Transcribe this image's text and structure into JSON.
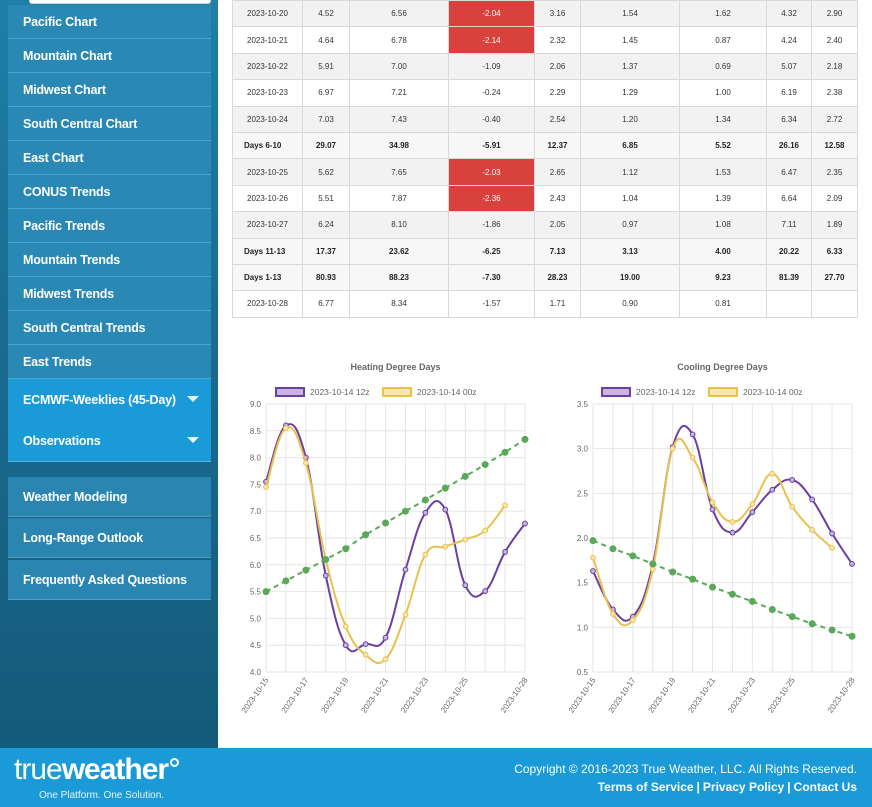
{
  "sidebar": {
    "items": [
      {
        "label": "Pacific Chart"
      },
      {
        "label": "Mountain Chart"
      },
      {
        "label": "Midwest Chart"
      },
      {
        "label": "South Central Chart"
      },
      {
        "label": "East Chart"
      },
      {
        "label": "CONUS Trends"
      },
      {
        "label": "Pacific Trends"
      },
      {
        "label": "Mountain Trends"
      },
      {
        "label": "Midwest Trends"
      },
      {
        "label": "South Central Trends"
      },
      {
        "label": "East Trends"
      }
    ],
    "dropdowns": [
      {
        "label": "ECMWF-Weeklies (45-Day)"
      },
      {
        "label": "Observations"
      }
    ],
    "links": [
      {
        "label": "Weather Modeling"
      },
      {
        "label": "Long-Range Outlook"
      },
      {
        "label": "Frequently Asked Questions"
      }
    ]
  },
  "table": {
    "rows": [
      {
        "cells": [
          "2023-10-20",
          "4.52",
          "6.56",
          "-2.04",
          "3.16",
          "1.54",
          "1.62",
          "4.32",
          "2.90"
        ],
        "neg": true,
        "sum": false
      },
      {
        "cells": [
          "2023-10-21",
          "4.64",
          "6.78",
          "-2.14",
          "2.32",
          "1.45",
          "0.87",
          "4.24",
          "2.40"
        ],
        "neg": true,
        "sum": false
      },
      {
        "cells": [
          "2023-10-22",
          "5.91",
          "7.00",
          "-1.09",
          "2.06",
          "1.37",
          "0.69",
          "5.07",
          "2.18"
        ],
        "neg": false,
        "sum": false
      },
      {
        "cells": [
          "2023-10-23",
          "6.97",
          "7.21",
          "-0.24",
          "2.29",
          "1.29",
          "1.00",
          "6.19",
          "2.38"
        ],
        "neg": false,
        "sum": false
      },
      {
        "cells": [
          "2023-10-24",
          "7.03",
          "7.43",
          "-0.40",
          "2.54",
          "1.20",
          "1.34",
          "6.34",
          "2.72"
        ],
        "neg": false,
        "sum": false
      },
      {
        "cells": [
          "Days 6-10",
          "29.07",
          "34.98",
          "-5.91",
          "12.37",
          "6.85",
          "5.52",
          "26.16",
          "12.58"
        ],
        "neg": false,
        "sum": true
      },
      {
        "cells": [
          "2023-10-25",
          "5.62",
          "7.65",
          "-2.03",
          "2.65",
          "1.12",
          "1.53",
          "6.47",
          "2.35"
        ],
        "neg": true,
        "sum": false
      },
      {
        "cells": [
          "2023-10-26",
          "5.51",
          "7.87",
          "-2.36",
          "2.43",
          "1.04",
          "1.39",
          "6.64",
          "2.09"
        ],
        "neg": true,
        "sum": false
      },
      {
        "cells": [
          "2023-10-27",
          "6.24",
          "8.10",
          "-1.86",
          "2.05",
          "0.97",
          "1.08",
          "7.11",
          "1.89"
        ],
        "neg": false,
        "sum": false
      },
      {
        "cells": [
          "Days 11-13",
          "17.37",
          "23.62",
          "-6.25",
          "7.13",
          "3.13",
          "4.00",
          "20.22",
          "6.33"
        ],
        "neg": false,
        "sum": true
      },
      {
        "cells": [
          "Days 1-13",
          "80.93",
          "88.23",
          "-7.30",
          "28.23",
          "19.00",
          "9.23",
          "81.39",
          "27.70"
        ],
        "neg": false,
        "sum": true
      },
      {
        "cells": [
          "2023-10-28",
          "6.77",
          "8.34",
          "-1.57",
          "1.71",
          "0.90",
          "0.81",
          "",
          ""
        ],
        "neg": false,
        "sum": false
      }
    ]
  },
  "colors": {
    "series_12z": "#6b3fa0",
    "series_00z": "#e8c14e",
    "trend": "#5aa85a",
    "negative_cell": "#d9423c"
  },
  "chart_data": [
    {
      "type": "line",
      "title": "Heating Degree Days",
      "legend_placement": "top",
      "x": [
        "2023-10-15",
        "2023-10-16",
        "2023-10-17",
        "2023-10-18",
        "2023-10-19",
        "2023-10-20",
        "2023-10-21",
        "2023-10-22",
        "2023-10-23",
        "2023-10-24",
        "2023-10-25",
        "2023-10-26",
        "2023-10-27",
        "2023-10-28"
      ],
      "x_tick_labels": [
        "2023-10-15",
        "2023-10-17",
        "2023-10-19",
        "2023-10-21",
        "2023-10-23",
        "2023-10-25",
        "2023-10-28"
      ],
      "ylim": [
        4.0,
        9.0
      ],
      "y_ticks": [
        "4.0",
        "4.5",
        "5.0",
        "5.5",
        "6.0",
        "6.5",
        "7.0",
        "7.5",
        "8.0",
        "8.5",
        "9.0"
      ],
      "grid": true,
      "series": [
        {
          "name": "2023-10-14 12z",
          "values": [
            7.55,
            8.6,
            8.0,
            5.8,
            4.5,
            4.52,
            4.64,
            5.91,
            6.97,
            7.03,
            5.62,
            5.51,
            6.24,
            6.77
          ]
        },
        {
          "name": "2023-10-14 00z",
          "values": [
            7.45,
            8.55,
            7.9,
            6.1,
            4.85,
            4.32,
            4.24,
            5.07,
            6.19,
            6.34,
            6.47,
            6.64,
            7.11,
            null
          ]
        },
        {
          "name": "",
          "values": [
            5.5,
            5.7,
            5.9,
            6.1,
            6.3,
            6.56,
            6.78,
            7.0,
            7.21,
            7.43,
            7.65,
            7.87,
            8.1,
            8.34
          ],
          "style": "dashed"
        }
      ]
    },
    {
      "type": "line",
      "title": "Cooling Degree Days",
      "legend_placement": "top",
      "x": [
        "2023-10-15",
        "2023-10-16",
        "2023-10-17",
        "2023-10-18",
        "2023-10-19",
        "2023-10-20",
        "2023-10-21",
        "2023-10-22",
        "2023-10-23",
        "2023-10-24",
        "2023-10-25",
        "2023-10-26",
        "2023-10-27",
        "2023-10-28"
      ],
      "x_tick_labels": [
        "2023-10-15",
        "2023-10-17",
        "2023-10-19",
        "2023-10-21",
        "2023-10-23",
        "2023-10-25",
        "2023-10-28"
      ],
      "ylim": [
        0.5,
        3.5
      ],
      "y_ticks": [
        "0.5",
        "1.0",
        "1.5",
        "2.0",
        "2.5",
        "3.0",
        "3.5"
      ],
      "grid": true,
      "series": [
        {
          "name": "2023-10-14 12z",
          "values": [
            1.63,
            1.2,
            1.12,
            1.7,
            3.02,
            3.16,
            2.32,
            2.06,
            2.29,
            2.54,
            2.65,
            2.43,
            2.05,
            1.71
          ]
        },
        {
          "name": "2023-10-14 00z",
          "values": [
            1.78,
            1.15,
            1.08,
            1.65,
            3.0,
            2.9,
            2.4,
            2.18,
            2.38,
            2.72,
            2.35,
            2.09,
            1.89,
            null
          ]
        },
        {
          "name": "",
          "values": [
            1.97,
            1.88,
            1.8,
            1.71,
            1.62,
            1.54,
            1.45,
            1.37,
            1.29,
            1.2,
            1.12,
            1.04,
            0.97,
            0.9
          ],
          "style": "dashed"
        }
      ]
    }
  ],
  "footer": {
    "logo_light": "true",
    "logo_bold": "weather",
    "tagline": "One Platform. One Solution.",
    "copyright": "Copyright © 2016-2023 True Weather, LLC. All Rights Reserved.",
    "links": [
      "Terms of Service",
      "Privacy Policy",
      "Contact Us"
    ],
    "separator": "|"
  }
}
